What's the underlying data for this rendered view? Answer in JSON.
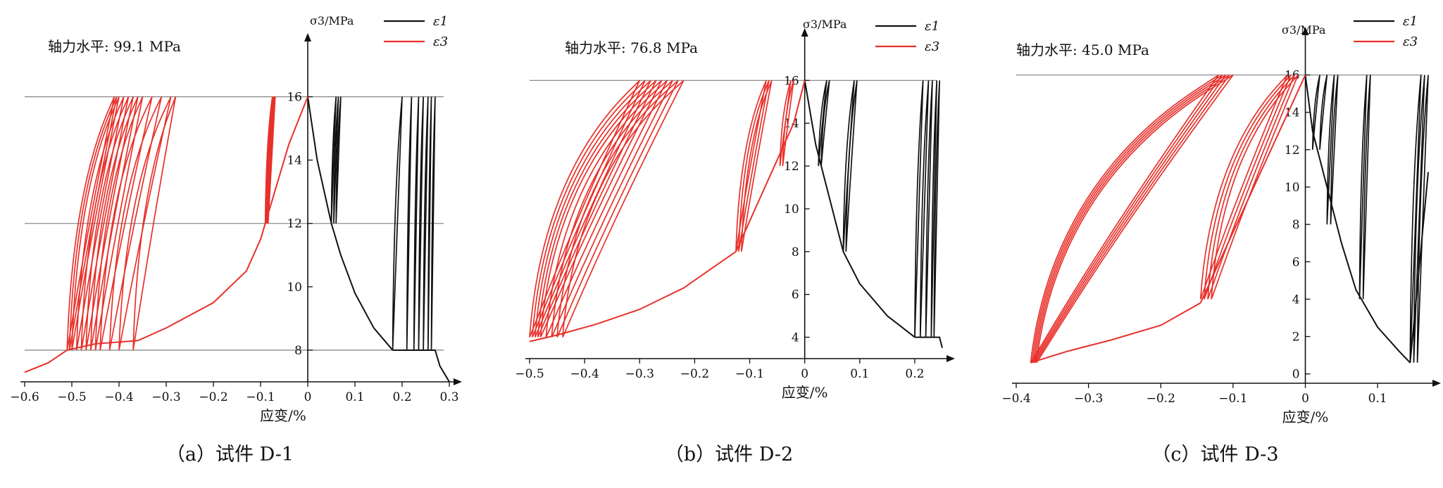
{
  "figure_captions": [
    "（a）试件 D-1",
    "（b）试件 D-2",
    "（c）试件 D-3"
  ],
  "colors": {
    "epsilon1": "#111111",
    "epsilon3": "#e8302a",
    "axis": "#111111",
    "refline": "#8c8c8c"
  },
  "chart_data": [
    {
      "type": "line",
      "caption": "（a）试件 D-1",
      "annotation": "轴力水平: 99.1 MPa",
      "xlabel": "应变/%",
      "ylabel": "σ3/MPa",
      "xlim": [
        -0.6,
        0.3
      ],
      "ylim": [
        7.0,
        16.9
      ],
      "x_ticks": [
        -0.6,
        -0.5,
        -0.4,
        -0.3,
        -0.2,
        -0.1,
        0,
        0.1,
        0.2,
        0.3
      ],
      "x_tick_labels": [
        "−0.6",
        "−0.5",
        "−0.4",
        "−0.3",
        "−0.2",
        "−0.1",
        "0",
        "0.1",
        "0.2",
        "0.3"
      ],
      "y_ticks": [
        8,
        10,
        12,
        14,
        16
      ],
      "y_tick_labels": [
        "8",
        "10",
        "12",
        "14",
        "16"
      ],
      "reference_lines": [
        8,
        12,
        16
      ],
      "legend": [
        {
          "key": "epsilon1",
          "label": "ε1"
        },
        {
          "key": "epsilon3",
          "label": "ε3"
        }
      ],
      "series": [
        {
          "key": "epsilon1",
          "name": "ε1",
          "envelope": [
            [
              0,
              16
            ],
            [
              0.02,
              14
            ],
            [
              0.05,
              12
            ],
            [
              0.07,
              11
            ],
            [
              0.1,
              9.8
            ],
            [
              0.14,
              8.7
            ],
            [
              0.18,
              8.0
            ]
          ],
          "cycles": [
            [
              0.05,
              0.06,
              12,
              16
            ],
            [
              0.055,
              0.065,
              12,
              16
            ],
            [
              0.06,
              0.07,
              12,
              16
            ],
            [
              0.18,
              0.2,
              8,
              16
            ],
            [
              0.21,
              0.22,
              8,
              16
            ],
            [
              0.225,
              0.235,
              8,
              16
            ],
            [
              0.235,
              0.245,
              8,
              16
            ],
            [
              0.245,
              0.255,
              8,
              16
            ],
            [
              0.255,
              0.262,
              8,
              16
            ],
            [
              0.262,
              0.27,
              8,
              16
            ]
          ],
          "tail": [
            [
              0.27,
              8
            ],
            [
              0.28,
              7.5
            ],
            [
              0.3,
              7.0
            ]
          ]
        },
        {
          "key": "epsilon3",
          "name": "ε3",
          "envelope": [
            [
              -0.6,
              7.3
            ],
            [
              -0.55,
              7.6
            ],
            [
              -0.51,
              8.0
            ],
            [
              -0.45,
              8.2
            ],
            [
              -0.36,
              8.3
            ],
            [
              -0.3,
              8.7
            ],
            [
              -0.2,
              9.5
            ],
            [
              -0.13,
              10.5
            ],
            [
              -0.1,
              11.5
            ],
            [
              -0.09,
              12
            ]
          ],
          "cycles": [
            [
              -0.51,
              -0.41,
              8,
              16
            ],
            [
              -0.505,
              -0.405,
              8,
              16
            ],
            [
              -0.5,
              -0.4,
              8,
              16
            ],
            [
              -0.49,
              -0.39,
              8,
              16
            ],
            [
              -0.48,
              -0.38,
              8,
              16
            ],
            [
              -0.47,
              -0.37,
              8,
              16
            ],
            [
              -0.46,
              -0.36,
              8,
              16
            ],
            [
              -0.45,
              -0.35,
              8,
              16
            ],
            [
              -0.44,
              -0.33,
              8,
              16
            ],
            [
              -0.42,
              -0.31,
              8,
              16
            ],
            [
              -0.4,
              -0.29,
              8,
              16
            ],
            [
              -0.37,
              -0.28,
              8,
              16
            ],
            [
              -0.09,
              -0.075,
              12,
              16
            ],
            [
              -0.088,
              -0.073,
              12,
              16
            ],
            [
              -0.086,
              -0.071,
              12,
              16
            ],
            [
              -0.084,
              -0.069,
              12,
              16
            ]
          ],
          "tail": [
            [
              -0.07,
              13
            ],
            [
              -0.04,
              14.5
            ],
            [
              0,
              16
            ]
          ]
        }
      ]
    },
    {
      "type": "line",
      "caption": "（b）试件 D-2",
      "annotation": "轴力水平: 76.8 MPa",
      "xlabel": "应变/%",
      "ylabel": "σ3/MPa",
      "xlim": [
        -0.5,
        0.25
      ],
      "ylim": [
        3.0,
        16.8
      ],
      "x_ticks": [
        -0.5,
        -0.4,
        -0.3,
        -0.2,
        -0.1,
        0,
        0.1,
        0.2
      ],
      "x_tick_labels": [
        "−0.5",
        "−0.4",
        "−0.3",
        "−0.2",
        "−0.1",
        "0",
        "0.1",
        "0.2"
      ],
      "y_ticks": [
        4,
        6,
        8,
        10,
        12,
        14,
        16
      ],
      "y_tick_labels": [
        "4",
        "6",
        "8",
        "10",
        "12",
        "14",
        "16"
      ],
      "reference_lines": [
        16
      ],
      "legend": [
        {
          "key": "epsilon1",
          "label": "ε1"
        },
        {
          "key": "epsilon3",
          "label": "ε3"
        }
      ],
      "series": [
        {
          "key": "epsilon1",
          "name": "ε1",
          "envelope": [
            [
              0,
              16
            ],
            [
              0.02,
              13
            ],
            [
              0.04,
              11
            ],
            [
              0.07,
              8
            ],
            [
              0.1,
              6.5
            ],
            [
              0.15,
              5
            ],
            [
              0.2,
              4
            ]
          ],
          "cycles": [
            [
              0.025,
              0.04,
              12,
              16
            ],
            [
              0.03,
              0.045,
              12,
              16
            ],
            [
              0.07,
              0.09,
              8,
              16
            ],
            [
              0.075,
              0.095,
              8,
              16
            ],
            [
              0.2,
              0.215,
              4,
              16
            ],
            [
              0.21,
              0.225,
              4,
              16
            ],
            [
              0.22,
              0.232,
              4,
              16
            ],
            [
              0.23,
              0.24,
              4,
              16
            ],
            [
              0.235,
              0.245,
              4,
              16
            ]
          ],
          "tail": [
            [
              0.245,
              4
            ],
            [
              0.25,
              3.5
            ]
          ]
        },
        {
          "key": "epsilon3",
          "name": "ε3",
          "envelope": [
            [
              -0.5,
              3.8
            ],
            [
              -0.45,
              4.1
            ],
            [
              -0.38,
              4.6
            ],
            [
              -0.3,
              5.3
            ],
            [
              -0.22,
              6.3
            ],
            [
              -0.17,
              7.2
            ],
            [
              -0.125,
              8
            ]
          ],
          "cycles": [
            [
              -0.5,
              -0.3,
              4,
              16
            ],
            [
              -0.495,
              -0.29,
              4,
              16
            ],
            [
              -0.49,
              -0.28,
              4,
              16
            ],
            [
              -0.485,
              -0.27,
              4,
              16
            ],
            [
              -0.48,
              -0.26,
              4,
              16
            ],
            [
              -0.47,
              -0.25,
              4,
              16
            ],
            [
              -0.46,
              -0.24,
              4,
              16
            ],
            [
              -0.45,
              -0.23,
              4,
              16
            ],
            [
              -0.44,
              -0.22,
              4,
              16
            ],
            [
              -0.125,
              -0.07,
              8,
              16
            ],
            [
              -0.12,
              -0.065,
              8,
              16
            ],
            [
              -0.115,
              -0.06,
              8,
              16
            ],
            [
              -0.045,
              -0.025,
              12,
              16
            ],
            [
              -0.04,
              -0.02,
              12,
              16
            ]
          ],
          "tail": [
            [
              -0.02,
              14
            ],
            [
              0,
              16
            ]
          ]
        }
      ]
    },
    {
      "type": "line",
      "caption": "（c）试件 D-3",
      "annotation": "轴力水平: 45.0 MPa",
      "xlabel": "应变/%",
      "ylabel": "σ3/MPa",
      "xlim": [
        -0.4,
        0.17
      ],
      "ylim": [
        -0.5,
        16.7
      ],
      "x_ticks": [
        -0.4,
        -0.3,
        -0.2,
        -0.1,
        0,
        0.1
      ],
      "x_tick_labels": [
        "−0.4",
        "−0.3",
        "−0.2",
        "−0.1",
        "0",
        "0.1"
      ],
      "y_ticks": [
        0,
        2,
        4,
        6,
        8,
        10,
        12,
        14,
        16
      ],
      "y_tick_labels": [
        "0",
        "2",
        "4",
        "6",
        "8",
        "10",
        "12",
        "14",
        "16"
      ],
      "reference_lines": [
        16
      ],
      "legend": [
        {
          "key": "epsilon1",
          "label": "ε1"
        },
        {
          "key": "epsilon3",
          "label": "ε3"
        }
      ],
      "series": [
        {
          "key": "epsilon1",
          "name": "ε1",
          "envelope": [
            [
              0,
              16
            ],
            [
              0.01,
              13
            ],
            [
              0.03,
              10
            ],
            [
              0.05,
              7
            ],
            [
              0.07,
              4.5
            ],
            [
              0.1,
              2.5
            ],
            [
              0.13,
              1.2
            ],
            [
              0.145,
              0.6
            ]
          ],
          "cycles": [
            [
              0.01,
              0.02,
              12,
              16
            ],
            [
              0.02,
              0.03,
              12,
              16
            ],
            [
              0.03,
              0.04,
              8,
              16
            ],
            [
              0.035,
              0.045,
              8,
              16
            ],
            [
              0.075,
              0.085,
              4,
              16
            ],
            [
              0.08,
              0.09,
              4,
              16
            ],
            [
              0.145,
              0.16,
              0.6,
              16
            ],
            [
              0.15,
              0.165,
              0.6,
              16
            ],
            [
              0.155,
              0.17,
              0.6,
              16
            ]
          ],
          "tail": [
            [
              0.17,
              10.8
            ]
          ]
        },
        {
          "key": "epsilon3",
          "name": "ε3",
          "envelope": [
            [
              -0.38,
              0.6
            ],
            [
              -0.33,
              1.2
            ],
            [
              -0.27,
              1.8
            ],
            [
              -0.2,
              2.6
            ],
            [
              -0.145,
              3.8
            ]
          ],
          "cycles": [
            [
              -0.38,
              -0.12,
              0.6,
              16
            ],
            [
              -0.378,
              -0.115,
              0.6,
              16
            ],
            [
              -0.376,
              -0.11,
              0.6,
              16
            ],
            [
              -0.374,
              -0.105,
              0.6,
              16
            ],
            [
              -0.372,
              -0.1,
              0.6,
              16
            ],
            [
              -0.145,
              -0.025,
              4,
              16
            ],
            [
              -0.14,
              -0.02,
              4,
              16
            ],
            [
              -0.135,
              -0.015,
              4,
              16
            ],
            [
              -0.13,
              -0.01,
              4,
              16
            ]
          ],
          "tail": [
            [
              0,
              16
            ]
          ]
        }
      ]
    }
  ]
}
